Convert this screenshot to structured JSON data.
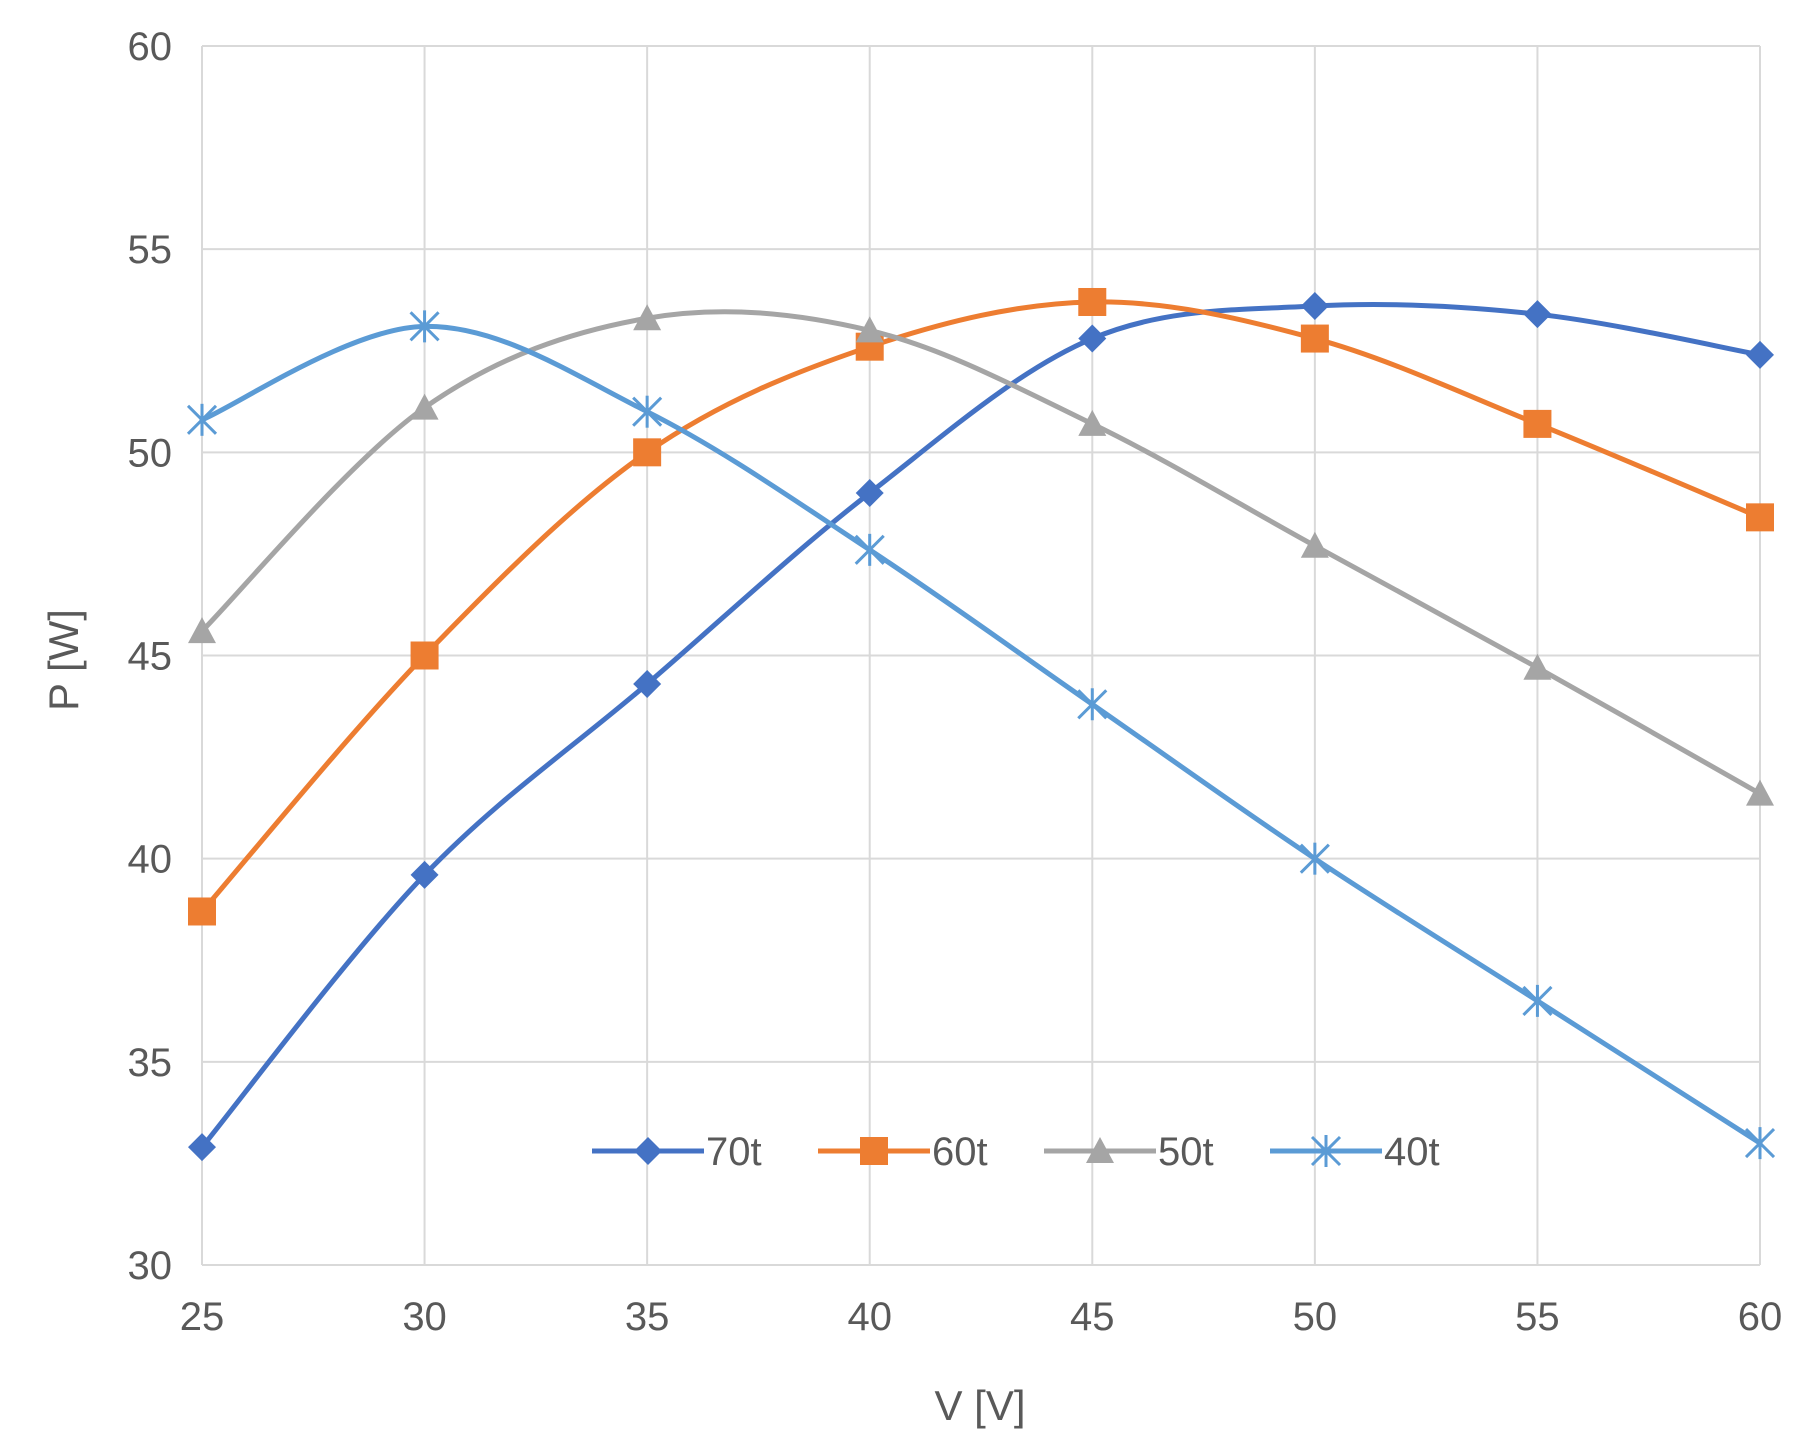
{
  "chart_data": {
    "type": "line",
    "title": "",
    "xlabel": "V [V]",
    "ylabel": "P [W]",
    "x": [
      25,
      30,
      35,
      40,
      45,
      50,
      55,
      60
    ],
    "x_ticks": [
      "25",
      "30",
      "35",
      "40",
      "45",
      "50",
      "55",
      "60"
    ],
    "y_ticks": [
      "30",
      "35",
      "40",
      "45",
      "50",
      "55",
      "60"
    ],
    "xlim": [
      25,
      60
    ],
    "ylim": [
      30,
      60
    ],
    "grid": true,
    "smooth": true,
    "legend_position": "bottom-inside",
    "series": [
      {
        "name": "70t",
        "color": "#4472c4",
        "marker": "diamond",
        "values": [
          32.9,
          39.6,
          44.3,
          49.0,
          52.8,
          53.6,
          53.4,
          52.4
        ]
      },
      {
        "name": "60t",
        "color": "#ed7d31",
        "marker": "square",
        "values": [
          38.7,
          45.0,
          50.0,
          52.6,
          53.7,
          52.8,
          50.7,
          48.4
        ]
      },
      {
        "name": "50t",
        "color": "#a5a5a5",
        "marker": "triangle",
        "values": [
          45.6,
          51.1,
          53.3,
          53.0,
          50.7,
          47.7,
          44.7,
          41.6
        ]
      },
      {
        "name": "40t",
        "color": "#5b9bd5",
        "marker": "asterisk",
        "values": [
          50.8,
          53.1,
          51.0,
          47.6,
          43.8,
          40.0,
          36.5,
          33.0
        ]
      }
    ]
  }
}
